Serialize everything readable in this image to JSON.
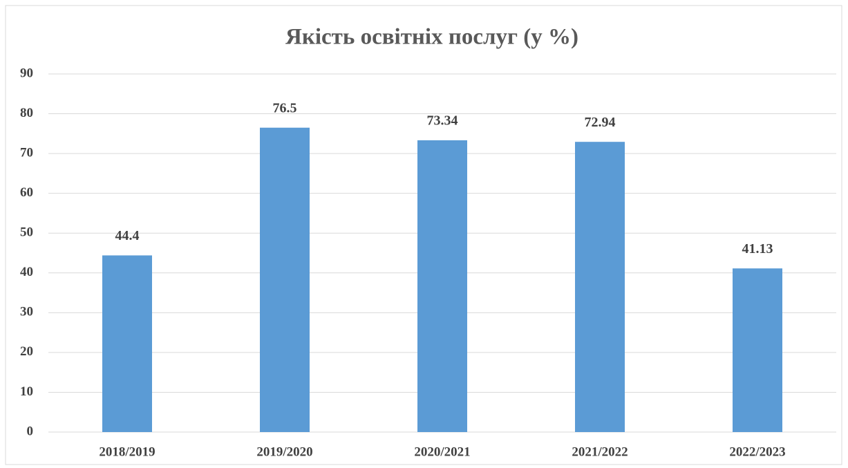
{
  "chart_data": {
    "type": "bar",
    "title": "Якість освітніх послуг (у %)",
    "categories": [
      "2018/2019",
      "2019/2020",
      "2020/2021",
      "2021/2022",
      "2022/2023"
    ],
    "values": [
      44.4,
      76.5,
      73.34,
      72.94,
      41.13
    ],
    "color": "#5b9bd5",
    "ylim": [
      0,
      90
    ],
    "yticks": [
      0,
      10,
      20,
      30,
      40,
      50,
      60,
      70,
      80,
      90
    ],
    "grid": true
  }
}
